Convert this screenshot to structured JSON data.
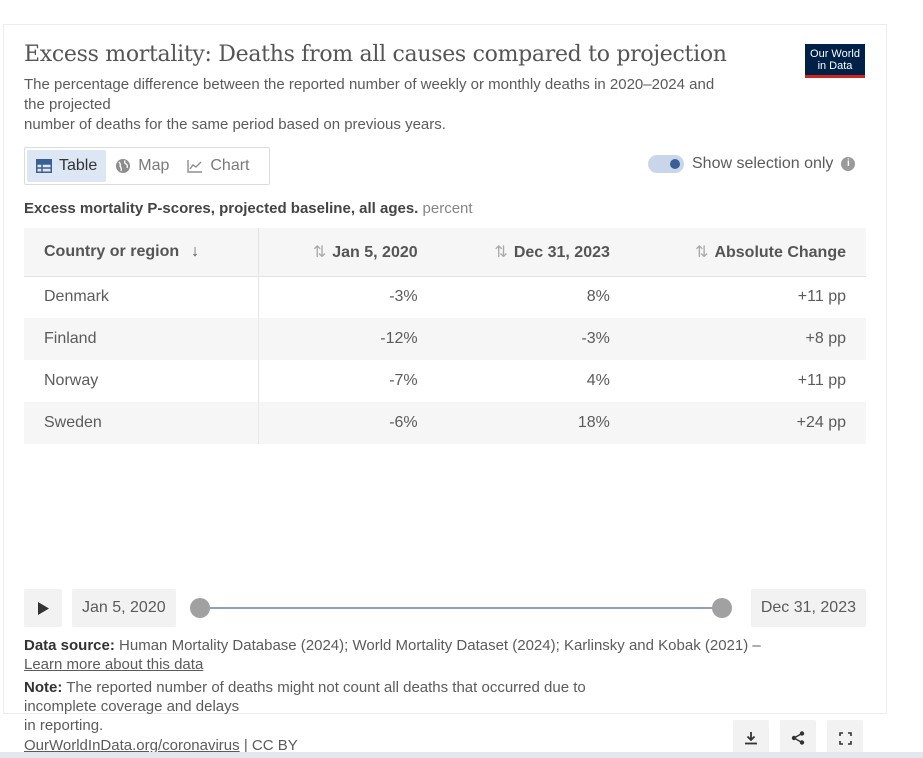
{
  "header": {
    "title": "Excess mortality: Deaths from all causes compared to projection",
    "subtitle_lines": [
      "The percentage difference between the reported number of weekly or monthly deaths in 2020–2024 and",
      "the projected",
      "number of deaths for the same period based on previous years."
    ],
    "logo_lines": [
      "Our World",
      "in Data"
    ]
  },
  "tabs": [
    {
      "label": "Table",
      "icon": "table-icon",
      "active": true
    },
    {
      "label": "Map",
      "icon": "globe-icon",
      "active": false
    },
    {
      "label": "Chart",
      "icon": "line-chart-icon",
      "active": false
    }
  ],
  "selection_toggle": {
    "label": "Show selection only",
    "on": true
  },
  "table": {
    "caption_bold": "Excess mortality P-scores, projected baseline, all ages.",
    "caption_unit": "percent",
    "columns": [
      "Country or region",
      "Jan 5, 2020",
      "Dec 31, 2023",
      "Absolute Change"
    ],
    "rows": [
      {
        "country": "Denmark",
        "start": "-3%",
        "end": "8%",
        "change": "+11 pp"
      },
      {
        "country": "Finland",
        "start": "-12%",
        "end": "-3%",
        "change": "+8 pp"
      },
      {
        "country": "Norway",
        "start": "-7%",
        "end": "4%",
        "change": "+11 pp"
      },
      {
        "country": "Sweden",
        "start": "-6%",
        "end": "18%",
        "change": "+24 pp"
      }
    ]
  },
  "timeline": {
    "start_date": "Jan 5, 2020",
    "end_date": "Dec 31, 2023"
  },
  "footer": {
    "source_label": "Data source:",
    "source_text": "Human Mortality Database (2024); World Mortality Dataset (2024); Karlinsky and Kobak (2021) –",
    "learn_more": "Learn more about this data",
    "note_label": "Note:",
    "note_lines": [
      "The reported number of deaths might not count all deaths that occurred due to",
      "incomplete coverage and delays",
      "in reporting."
    ],
    "site_link": "OurWorldInData.org/coronavirus",
    "license": "| CC BY"
  },
  "colors": {
    "accent": "#3a5f94",
    "logo_bg": "#002147",
    "logo_underline": "#ce261e"
  }
}
